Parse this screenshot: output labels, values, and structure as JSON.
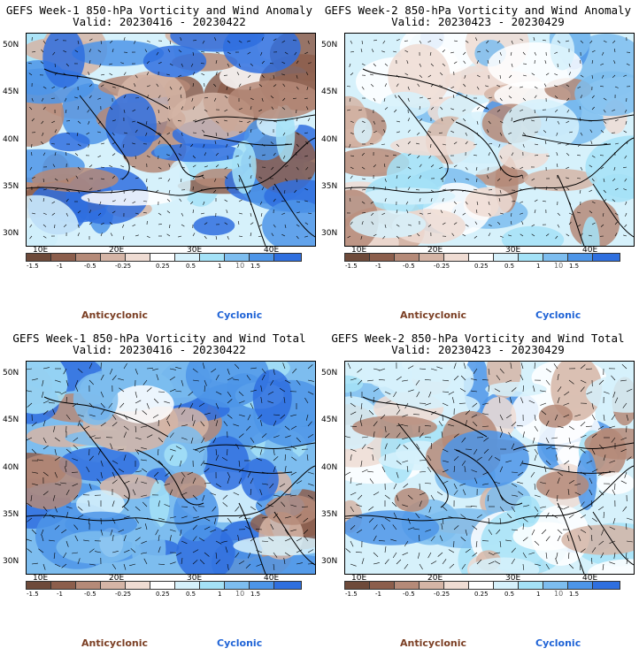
{
  "colors": {
    "anticyclonic_label": "#7b3f24",
    "cyclonic_label": "#1f63d6",
    "scale": [
      "#6e4a3a",
      "#8c5e4c",
      "#b58a78",
      "#d5b5a6",
      "#efdcd3",
      "#ffffff",
      "#d6f1fb",
      "#a4e2f7",
      "#7dbdef",
      "#4d95e8",
      "#2f6fdf"
    ]
  },
  "labels": {
    "lat": [
      "50N",
      "45N",
      "40N",
      "35N",
      "30N"
    ],
    "lon": [
      "10E",
      "20E",
      "30E",
      "40E"
    ],
    "colorbar": [
      "-1.5",
      "-1",
      "-0.5",
      "-0.25",
      "0.25",
      "0.5",
      "1",
      "1.5"
    ],
    "units": "10",
    "anticyclonic": "Anticyclonic",
    "cyclonic": "Cyclonic"
  },
  "panels": [
    {
      "title": "GEFS Week-1 850-hPa Vorticity and Wind Anomaly",
      "valid": "Valid: 20230416 - 20230422"
    },
    {
      "title": "GEFS Week-2 850-hPa Vorticity and Wind Anomaly",
      "valid": "Valid: 20230423 - 20230429"
    },
    {
      "title": "GEFS Week-1 850-hPa Vorticity and Wind Total",
      "valid": "Valid: 20230416 - 20230422"
    },
    {
      "title": "GEFS Week-2 850-hPa Vorticity and Wind Total",
      "valid": "Valid: 20230423 - 20230429"
    }
  ]
}
